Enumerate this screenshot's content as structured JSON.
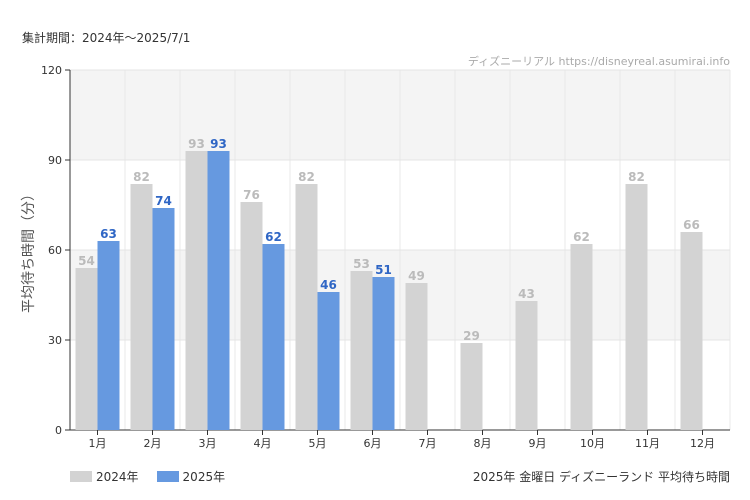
{
  "header": {
    "period": "集計期間：2024年〜2025/7/1",
    "source": "ディズニーリアル  https://disneyreal.asumirai.info"
  },
  "footer": {
    "title": "2025年 金曜日 ディズニーランド 平均待ち時間"
  },
  "chart_data": {
    "type": "bar",
    "title": "2025年 金曜日 ディズニーランド 平均待ち時間",
    "ylabel": "平均待ち時間（分）",
    "xlabel": "",
    "ylim": [
      0,
      120
    ],
    "yticks": [
      0,
      30,
      60,
      90,
      120
    ],
    "categories": [
      "1月",
      "2月",
      "3月",
      "4月",
      "5月",
      "6月",
      "7月",
      "8月",
      "9月",
      "10月",
      "11月",
      "12月"
    ],
    "series": [
      {
        "name": "2024年",
        "color": "#d3d3d3",
        "label_color": "#bbbbbb",
        "values": [
          54,
          82,
          93,
          76,
          82,
          53,
          49,
          29,
          43,
          62,
          82,
          66
        ]
      },
      {
        "name": "2025年",
        "color": "#6699e0",
        "label_color": "#2f66c5",
        "values": [
          63,
          74,
          93,
          62,
          46,
          51,
          null,
          null,
          null,
          null,
          null,
          null
        ]
      }
    ],
    "grid": true,
    "legend": "bottom-left"
  }
}
